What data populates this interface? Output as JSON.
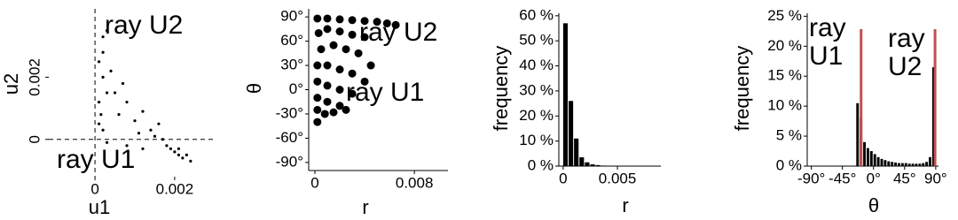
{
  "chart_data": [
    {
      "type": "scatter",
      "x_label": "u1",
      "y_label": "u2",
      "color": "#000000",
      "zero_lines": true,
      "x": [
        0.0001,
        0.0001,
        0.0002,
        0.0002,
        0.0002,
        0.0003,
        0.0001,
        0.0003,
        0.00015,
        0.0002,
        0.0005,
        0.0006,
        0.0008,
        0.001,
        0.0012,
        0.0014,
        0.0016,
        0.0004,
        0.0007,
        0.0011,
        0.0018,
        0.002,
        0.0021,
        0.0022,
        0.0023,
        0.0019,
        0.0024,
        0.0017,
        0.0015,
        0.0021,
        0.0003,
        0.0008,
        0.0012
      ],
      "values": [
        0.0005,
        0.0012,
        0.002,
        0.0028,
        0.0033,
        0.0035,
        0.0025,
        0.0015,
        0.0008,
        0.0003,
        0.0015,
        0.0008,
        0.0012,
        0.0006,
        0.0009,
        0.0003,
        0.0005,
        0.0022,
        0.0018,
        0.0002,
        -0.0002,
        -0.0004,
        -0.0005,
        -0.0006,
        -0.0005,
        -0.0003,
        -0.0007,
        0.0,
        0.0001,
        -0.0003,
        -0.0001,
        -0.0002,
        -0.0003
      ],
      "xlim": [
        -0.00116,
        0.00296
      ],
      "ylim": [
        -0.0012,
        0.0042
      ],
      "xticks": [
        0,
        0.002
      ],
      "yticks": [
        0,
        0.002
      ],
      "annotations": [
        [
          "ray U2"
        ],
        [
          "ray U1"
        ]
      ]
    },
    {
      "type": "scatter",
      "x_label": "r",
      "y_label": "θ",
      "color": "#000000",
      "x": [
        0.0002,
        0.001,
        0.002,
        0.003,
        0.004,
        0.005,
        0.0058,
        0.0065,
        0.0003,
        0.001,
        0.002,
        0.003,
        0.004,
        0.0005,
        0.0015,
        0.0025,
        0.0035,
        0.0002,
        0.001,
        0.002,
        0.003,
        0.0002,
        0.001,
        0.002,
        0.003,
        0.0002,
        0.001,
        0.002,
        0.0025,
        0.0002,
        0.0008,
        0.0002,
        0.0015,
        0.004,
        0.0045
      ],
      "values": [
        88,
        88,
        87,
        86,
        85,
        84,
        82,
        80,
        70,
        75,
        72,
        68,
        65,
        50,
        55,
        50,
        45,
        30,
        30,
        25,
        20,
        10,
        5,
        0,
        -5,
        -10,
        -15,
        -20,
        -25,
        -25,
        -30,
        -40,
        -28,
        10,
        30
      ],
      "xlim": [
        -0.0005,
        0.0107
      ],
      "ylim": [
        -100,
        100
      ],
      "xticks": [
        0,
        0.008
      ],
      "yticks": [
        {
          "value": 90,
          "label": "90°"
        },
        {
          "value": 60,
          "label": "60°"
        },
        {
          "value": 30,
          "label": "30°"
        },
        {
          "value": 0,
          "label": "0°"
        },
        {
          "value": -30,
          "label": "-30°"
        },
        {
          "value": -60,
          "label": "-60°"
        },
        {
          "value": -90,
          "label": "-90°"
        }
      ],
      "annotations": [
        [
          "ray U2"
        ],
        [
          "ray U1"
        ]
      ]
    },
    {
      "type": "histogram",
      "x_label": "r",
      "y_label": "frequency",
      "color": "#000000",
      "bins": [
        0,
        0.0005,
        0.001,
        0.0015,
        0.002,
        0.0025,
        0.003,
        0.0035,
        0.004,
        0.0045
      ],
      "values": [
        57,
        26,
        11,
        3.5,
        1.5,
        0.7,
        0.4,
        0.2,
        0.1
      ],
      "xlim": [
        -0.0004,
        0.009
      ],
      "ylim": [
        0,
        61
      ],
      "xticks": [
        0,
        0.005
      ],
      "yticks": [
        {
          "value": 0,
          "label": "0 %"
        },
        {
          "value": 10,
          "label": "10 %"
        },
        {
          "value": 20,
          "label": "20 %"
        },
        {
          "value": 30,
          "label": "30 %"
        },
        {
          "value": 40,
          "label": "40 %"
        },
        {
          "value": 50,
          "label": "50 %"
        },
        {
          "value": 60,
          "label": "60 %"
        }
      ]
    },
    {
      "type": "histogram",
      "x_label": "θ",
      "y_label": "frequency",
      "color": "#000000",
      "bins": [
        -25,
        -20,
        -15,
        -10,
        -5,
        0,
        5,
        10,
        15,
        20,
        25,
        30,
        35,
        40,
        45,
        50,
        55,
        60,
        65,
        70,
        75,
        80,
        85,
        90
      ],
      "values": [
        10.5,
        8,
        4,
        3,
        2.5,
        2,
        1.5,
        1.2,
        1,
        0.8,
        0.7,
        0.6,
        0.5,
        0.5,
        0.5,
        0.4,
        0.4,
        0.4,
        0.4,
        0.5,
        0.7,
        1.5,
        16.5
      ],
      "ref_lines": [
        {
          "x": -18,
          "color": "#c0504d"
        },
        {
          "x": 89,
          "color": "#c0504d"
        }
      ],
      "xlim": [
        -96,
        94
      ],
      "ylim": [
        0,
        25.5
      ],
      "xticks": [
        {
          "value": -90,
          "label": "-90°"
        },
        {
          "value": -45,
          "label": "-45°"
        },
        {
          "value": 0,
          "label": "0°"
        },
        {
          "value": 45,
          "label": "45°"
        },
        {
          "value": 90,
          "label": "90°"
        }
      ],
      "yticks": [
        {
          "value": 0,
          "label": "0 %"
        },
        {
          "value": 5,
          "label": "5 %"
        },
        {
          "value": 10,
          "label": "10 %"
        },
        {
          "value": 15,
          "label": "15 %"
        },
        {
          "value": 20,
          "label": "20 %"
        },
        {
          "value": 25,
          "label": "25 %"
        }
      ],
      "annotations": [
        [
          "ray",
          "U1"
        ],
        [
          "ray",
          "U2"
        ]
      ]
    }
  ]
}
